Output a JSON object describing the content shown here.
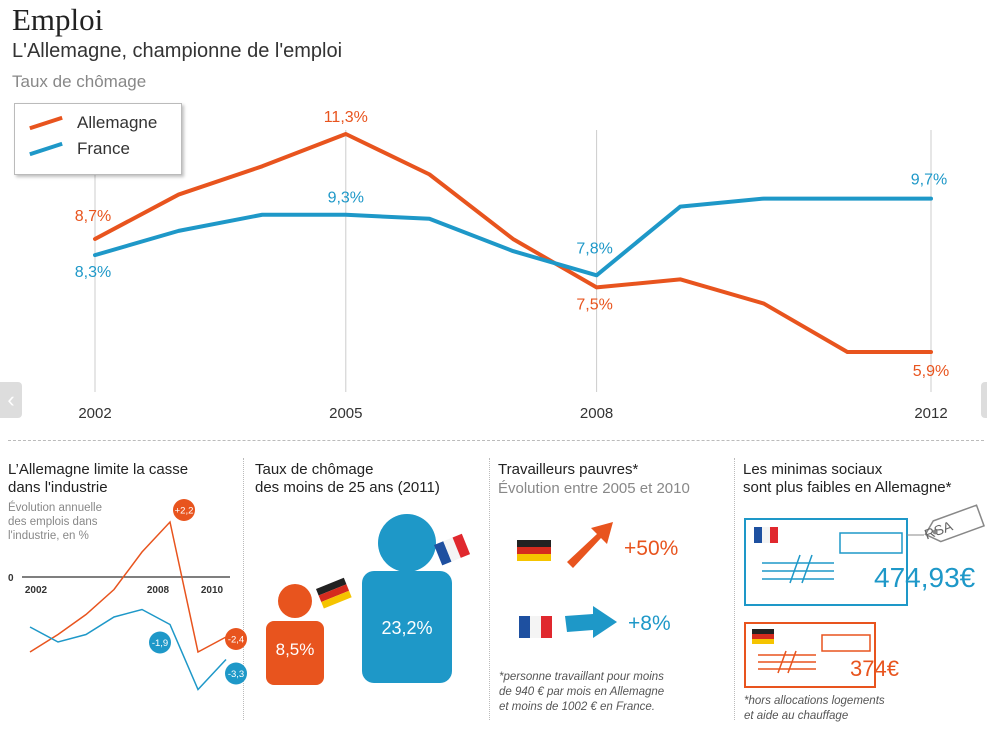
{
  "header": {
    "title": "Emploi",
    "subtitle": "L'Allemagne, championne de l'emploi",
    "caption": "Taux de chômage"
  },
  "colors": {
    "germany": "#e8541e",
    "france": "#1e98c8",
    "grid": "#cccccc"
  },
  "chart_data": [
    {
      "type": "line",
      "title": "Taux de chômage",
      "x": [
        2002,
        2003,
        2004,
        2005,
        2006,
        2007,
        2008,
        2009,
        2010,
        2011,
        2012
      ],
      "x_tick_labels": [
        "2002",
        "2005",
        "2008",
        "2012"
      ],
      "series": [
        {
          "name": "Allemagne",
          "color": "#e8541e",
          "values": [
            8.7,
            9.8,
            10.5,
            11.3,
            10.3,
            8.7,
            7.5,
            7.7,
            7.1,
            5.9,
            5.9
          ]
        },
        {
          "name": "France",
          "color": "#1e98c8",
          "values": [
            8.3,
            8.9,
            9.3,
            9.3,
            9.2,
            8.4,
            7.8,
            9.5,
            9.7,
            9.7,
            9.7
          ]
        }
      ],
      "data_labels": [
        {
          "series": "Allemagne",
          "x": 2002,
          "text": "8,7%"
        },
        {
          "series": "Allemagne",
          "x": 2005,
          "text": "11,3%"
        },
        {
          "series": "Allemagne",
          "x": 2008,
          "text": "7,5%"
        },
        {
          "series": "Allemagne",
          "x": 2012,
          "text": "5,9%"
        },
        {
          "series": "France",
          "x": 2002,
          "text": "8,3%"
        },
        {
          "series": "France",
          "x": 2005,
          "text": "9,3%"
        },
        {
          "series": "France",
          "x": 2008,
          "text": "7,8%"
        },
        {
          "series": "France",
          "x": 2012,
          "text": "9,7%"
        }
      ],
      "legend": "top-left",
      "grid": "vertical lines at labelled years"
    },
    {
      "type": "line",
      "title": "L'Allemagne limite la casse dans l'industrie",
      "subtitle": "Évolution annuelle des emplois dans l'industrie, en %",
      "x_tick_labels": [
        "2002",
        "2008",
        "2010"
      ],
      "zero_label": "0",
      "series": [
        {
          "name": "Allemagne",
          "color": "#e8541e",
          "values": [
            -3.0,
            -2.3,
            -1.5,
            -0.5,
            1.0,
            2.2,
            -3.0,
            -2.4
          ]
        },
        {
          "name": "France",
          "color": "#1e98c8",
          "values": [
            -2.0,
            -2.6,
            -2.3,
            -1.6,
            -1.3,
            -1.9,
            -4.5,
            -3.3
          ]
        }
      ],
      "badges": [
        {
          "series": "Allemagne",
          "text": "+2,2"
        },
        {
          "series": "Allemagne",
          "text": "-2,4"
        },
        {
          "series": "France",
          "text": "-1,9"
        },
        {
          "series": "France",
          "text": "-3,3"
        }
      ]
    }
  ],
  "panels": {
    "industry": {
      "title_line1": "L’Allemagne limite la casse",
      "title_line2": "dans l'industrie",
      "sub_line1": "Évolution annuelle",
      "sub_line2": "des emplois dans",
      "sub_line3": "l'industrie, en %",
      "zero": "0",
      "x1": "2002",
      "x2": "2008",
      "x3": "2010",
      "b1": "+2,2",
      "b2": "-2,4",
      "b3": "-1,9",
      "b4": "-3,3"
    },
    "youth": {
      "title_line1": "Taux de chômage",
      "title_line2": "des moins de 25 ans (2011)",
      "germany_value": "8,5%",
      "france_value": "23,2%"
    },
    "working_poor": {
      "title": "Travailleurs pauvres*",
      "subtitle": "Évolution entre 2005 et 2010",
      "germany_value": "+50%",
      "france_value": "+8%",
      "note_line1": "*personne travaillant pour moins",
      "note_line2": "de 940 € par mois en Allemagne",
      "note_line3": "et moins de 1002 € en France."
    },
    "minima": {
      "title_line1": "Les minimas sociaux",
      "title_line2": "sont plus faibles en Allemagne*",
      "tag": "RSA",
      "france_value": "474,93€",
      "germany_value": "374€",
      "note_line1": "*hors allocations logements",
      "note_line2": "et aide au chauffage"
    }
  },
  "legend": {
    "germany_label": "Allemagne",
    "france_label": "France"
  },
  "nav": {
    "left_glyph": "‹",
    "right_glyph": "›"
  }
}
